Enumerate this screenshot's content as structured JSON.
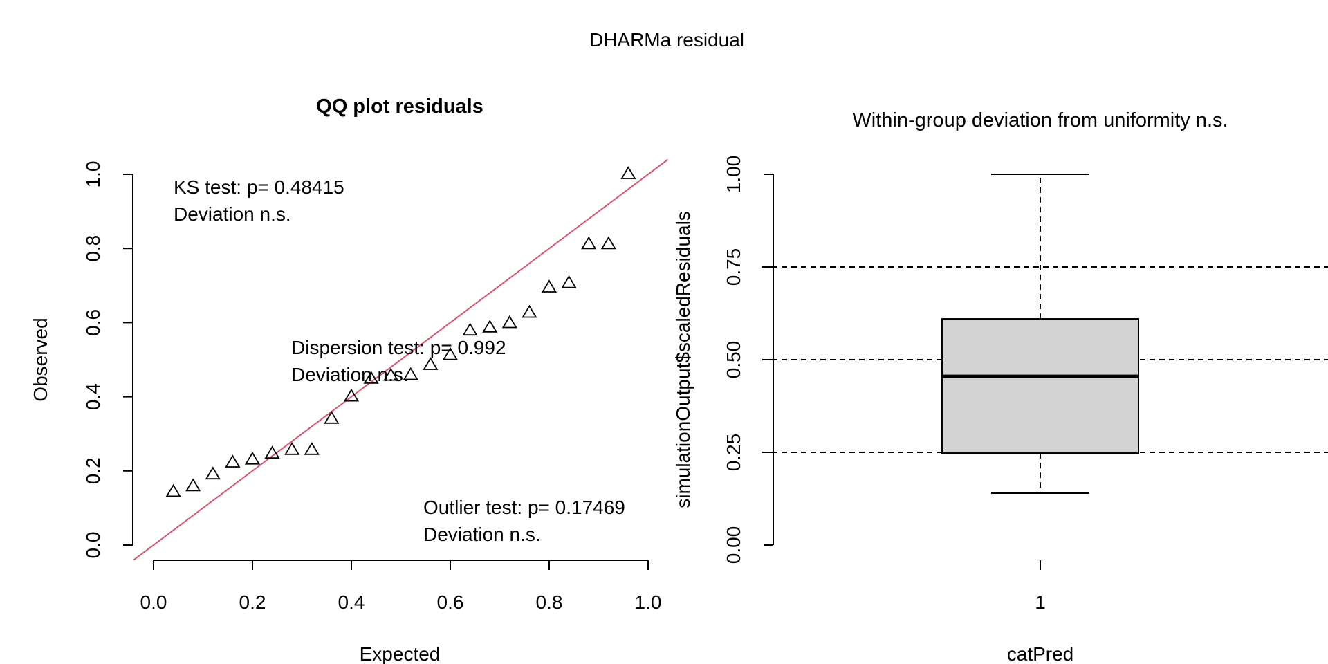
{
  "main_title": "DHARMa residual",
  "chart_data": [
    {
      "type": "scatter",
      "title": "QQ plot residuals",
      "xlabel": "Expected",
      "ylabel": "Observed",
      "xlim": [
        0,
        1
      ],
      "ylim": [
        0,
        1
      ],
      "x_ticks": [
        "0.0",
        "0.2",
        "0.4",
        "0.6",
        "0.8",
        "1.0"
      ],
      "y_ticks": [
        "0.0",
        "0.2",
        "0.4",
        "0.6",
        "0.8",
        "1.0"
      ],
      "marker": "open-triangle",
      "reference_line": {
        "slope": 1,
        "intercept": 0,
        "color": "#DF536B"
      },
      "points": [
        [
          0.04,
          0.143
        ],
        [
          0.08,
          0.158
        ],
        [
          0.12,
          0.19
        ],
        [
          0.16,
          0.222
        ],
        [
          0.2,
          0.23
        ],
        [
          0.24,
          0.246
        ],
        [
          0.28,
          0.256
        ],
        [
          0.32,
          0.256
        ],
        [
          0.36,
          0.34
        ],
        [
          0.4,
          0.4
        ],
        [
          0.44,
          0.448
        ],
        [
          0.48,
          0.456
        ],
        [
          0.52,
          0.458
        ],
        [
          0.56,
          0.485
        ],
        [
          0.6,
          0.512
        ],
        [
          0.64,
          0.578
        ],
        [
          0.68,
          0.586
        ],
        [
          0.72,
          0.598
        ],
        [
          0.76,
          0.626
        ],
        [
          0.8,
          0.694
        ],
        [
          0.84,
          0.706
        ],
        [
          0.88,
          0.811
        ],
        [
          0.92,
          0.811
        ],
        [
          0.96,
          1.0
        ]
      ],
      "annotations": {
        "ks_line1": "KS test: p= 0.48415",
        "ks_line2": "Deviation  n.s.",
        "dispersion_line1": "Dispersion test: p= 0.992",
        "dispersion_line2": "Deviation n.s.",
        "outlier_line1": "Outlier test: p= 0.17469",
        "outlier_line2": "Deviation  n.s."
      }
    },
    {
      "type": "box",
      "title": "Within-group deviation from uniformity n.s.",
      "xlabel": "catPred",
      "ylabel": "simulationOutput$scaledResiduals",
      "categories": [
        "1"
      ],
      "ylim": [
        0,
        1
      ],
      "y_ticks": [
        "0.00",
        "0.25",
        "0.50",
        "0.75",
        "1.00"
      ],
      "reference_lines": [
        0.25,
        0.5,
        0.75
      ],
      "box": {
        "min": 0.14,
        "q1": 0.248,
        "median": 0.455,
        "q3": 0.61,
        "max": 1.0
      },
      "box_fill": "#D3D3D3"
    }
  ]
}
